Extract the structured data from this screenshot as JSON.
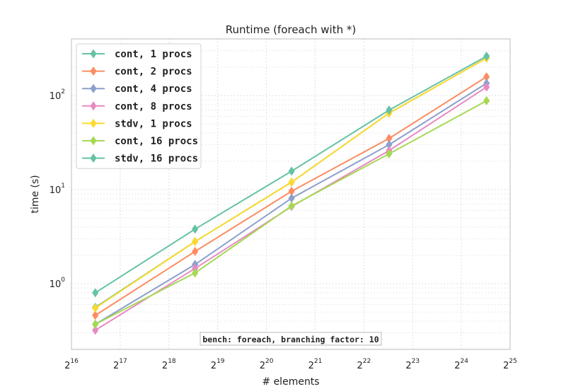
{
  "chart_data": {
    "type": "line",
    "title": "Runtime (foreach with *)",
    "xlabel": "# elements",
    "ylabel": "time (s)",
    "x_scale": "log2",
    "y_scale": "log10",
    "xlim_exponent": [
      16,
      25
    ],
    "ylim": [
      0.2,
      400
    ],
    "grid": true,
    "legend_placement": "top-left",
    "x": [
      92000,
      380000,
      1500000,
      6000000,
      24000000
    ],
    "x_ticks": [
      {
        "base": "2",
        "exp": "16"
      },
      {
        "base": "2",
        "exp": "17"
      },
      {
        "base": "2",
        "exp": "18"
      },
      {
        "base": "2",
        "exp": "19"
      },
      {
        "base": "2",
        "exp": "20"
      },
      {
        "base": "2",
        "exp": "21"
      },
      {
        "base": "2",
        "exp": "22"
      },
      {
        "base": "2",
        "exp": "23"
      },
      {
        "base": "2",
        "exp": "24"
      },
      {
        "base": "2",
        "exp": "25"
      }
    ],
    "y_ticks": [
      {
        "base": "10",
        "exp": "0"
      },
      {
        "base": "10",
        "exp": "1"
      },
      {
        "base": "10",
        "exp": "2"
      }
    ],
    "annotation": "bench: foreach, branching factor: 10",
    "series": [
      {
        "name": "cont, 1 procs",
        "color": "#66c2a5",
        "values": [
          0.56,
          2.8,
          12.0,
          65,
          250
        ]
      },
      {
        "name": "cont, 2 procs",
        "color": "#fc8d62",
        "values": [
          0.46,
          2.2,
          9.6,
          35,
          158
        ]
      },
      {
        "name": "cont, 4 procs",
        "color": "#8da0cb",
        "values": [
          0.37,
          1.6,
          8.1,
          30,
          135
        ]
      },
      {
        "name": "cont, 8 procs",
        "color": "#e78ac3",
        "values": [
          0.32,
          1.45,
          6.6,
          26,
          123
        ]
      },
      {
        "name": "stdv, 1 procs",
        "color": "#ffd92f",
        "values": [
          0.55,
          2.8,
          12.0,
          65,
          250
        ]
      },
      {
        "name": "cont, 16 procs",
        "color": "#a6d854",
        "values": [
          0.37,
          1.3,
          6.7,
          24,
          88
        ]
      },
      {
        "name": "stdv, 16 procs",
        "color": "#66c2a5",
        "values": [
          0.8,
          3.8,
          15.7,
          70,
          262
        ]
      }
    ]
  }
}
